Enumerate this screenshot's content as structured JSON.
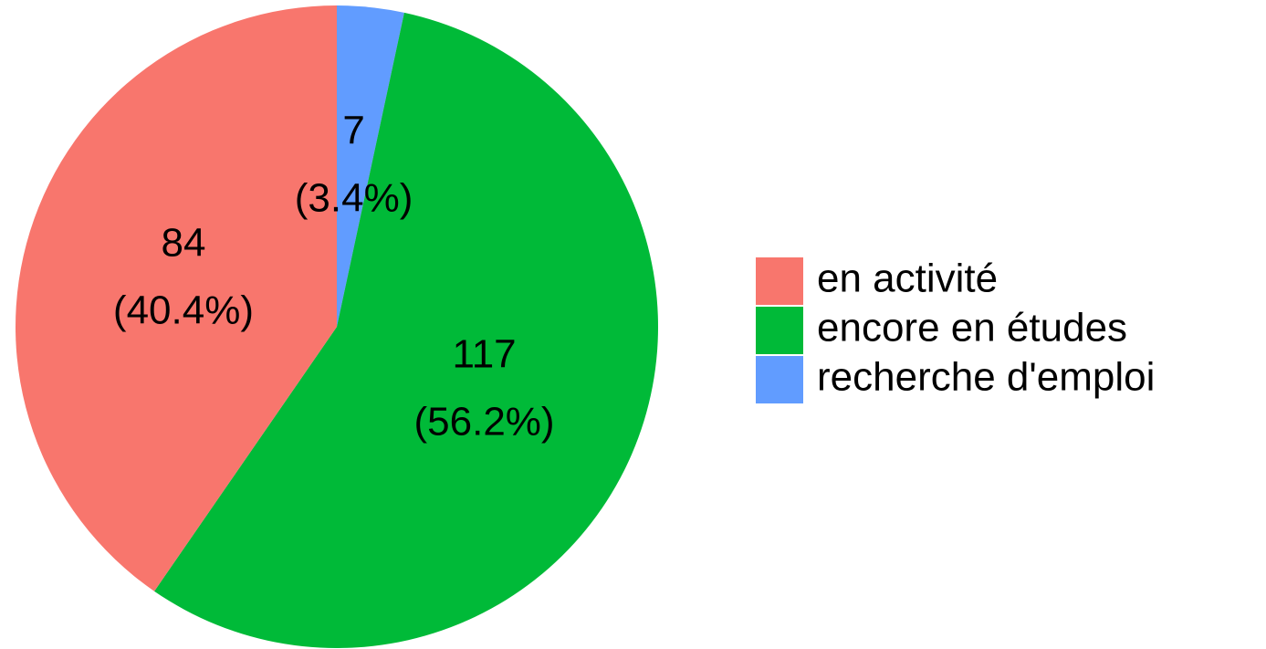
{
  "chart_data": {
    "type": "pie",
    "categories": [
      "en activité",
      "encore en études",
      "recherche d'emploi"
    ],
    "values": [
      84,
      117,
      7
    ],
    "percents": [
      40.4,
      56.2,
      3.4
    ],
    "percent_labels": [
      "(40.4%)",
      "(56.2%)",
      "(3.4%)"
    ],
    "colors": [
      "#f8766d",
      "#00ba38",
      "#619cff"
    ],
    "legend": "right"
  }
}
